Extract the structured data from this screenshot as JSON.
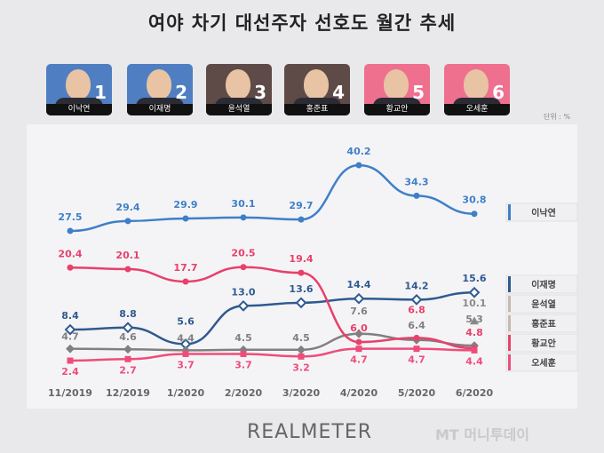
{
  "title": "여야 차기 대선주자 선호도 월간 추세",
  "candidates": [
    {
      "name": "이낙연",
      "number": "1",
      "color": "#4f7fc2"
    },
    {
      "name": "이재명",
      "number": "2",
      "color": "#4f7fc2"
    },
    {
      "name": "윤석열",
      "number": "3",
      "color": "#5e4b48"
    },
    {
      "name": "홍준표",
      "number": "4",
      "color": "#5e4b48"
    },
    {
      "name": "황교안",
      "number": "5",
      "color": "#ef6f8f"
    },
    {
      "name": "오세훈",
      "number": "6",
      "color": "#ef6f8f"
    }
  ],
  "unit": "단위 : %",
  "brand": "REALMETER",
  "watermark": "MT 머니투데이",
  "chart_data": {
    "type": "line",
    "categories": [
      "11/2019",
      "12/2019",
      "1/2020",
      "2/2020",
      "3/2020",
      "4/2020",
      "5/2020",
      "6/2020"
    ],
    "ylim": [
      0,
      42
    ],
    "grid": false,
    "legend": "right",
    "series": [
      {
        "name": "이낙연",
        "color": "#3f7fc8",
        "marker": "circle",
        "values": [
          27.5,
          29.4,
          29.9,
          30.1,
          29.7,
          40.2,
          34.3,
          30.8
        ]
      },
      {
        "name": "이재명",
        "color": "#2f5a8f",
        "marker": "diamond-open",
        "values": [
          8.4,
          8.8,
          5.6,
          13.0,
          13.6,
          14.4,
          14.2,
          15.6
        ]
      },
      {
        "name": "윤석열",
        "color": "#8a8a8a",
        "marker": "triangle",
        "values": [
          null,
          null,
          null,
          null,
          null,
          null,
          null,
          10.1
        ]
      },
      {
        "name": "홍준표",
        "color": "#808080",
        "marker": "diamond",
        "values": [
          4.7,
          4.6,
          4.4,
          4.5,
          4.5,
          7.6,
          6.4,
          5.3
        ]
      },
      {
        "name": "황교안",
        "color": "#e8406a",
        "marker": "circle",
        "values": [
          20.4,
          20.1,
          17.7,
          20.5,
          19.4,
          6.0,
          6.8,
          4.8
        ]
      },
      {
        "name": "오세훈",
        "color": "#ee4d7a",
        "marker": "square",
        "values": [
          2.4,
          2.7,
          3.7,
          3.7,
          3.2,
          4.7,
          4.7,
          4.4
        ]
      }
    ]
  }
}
